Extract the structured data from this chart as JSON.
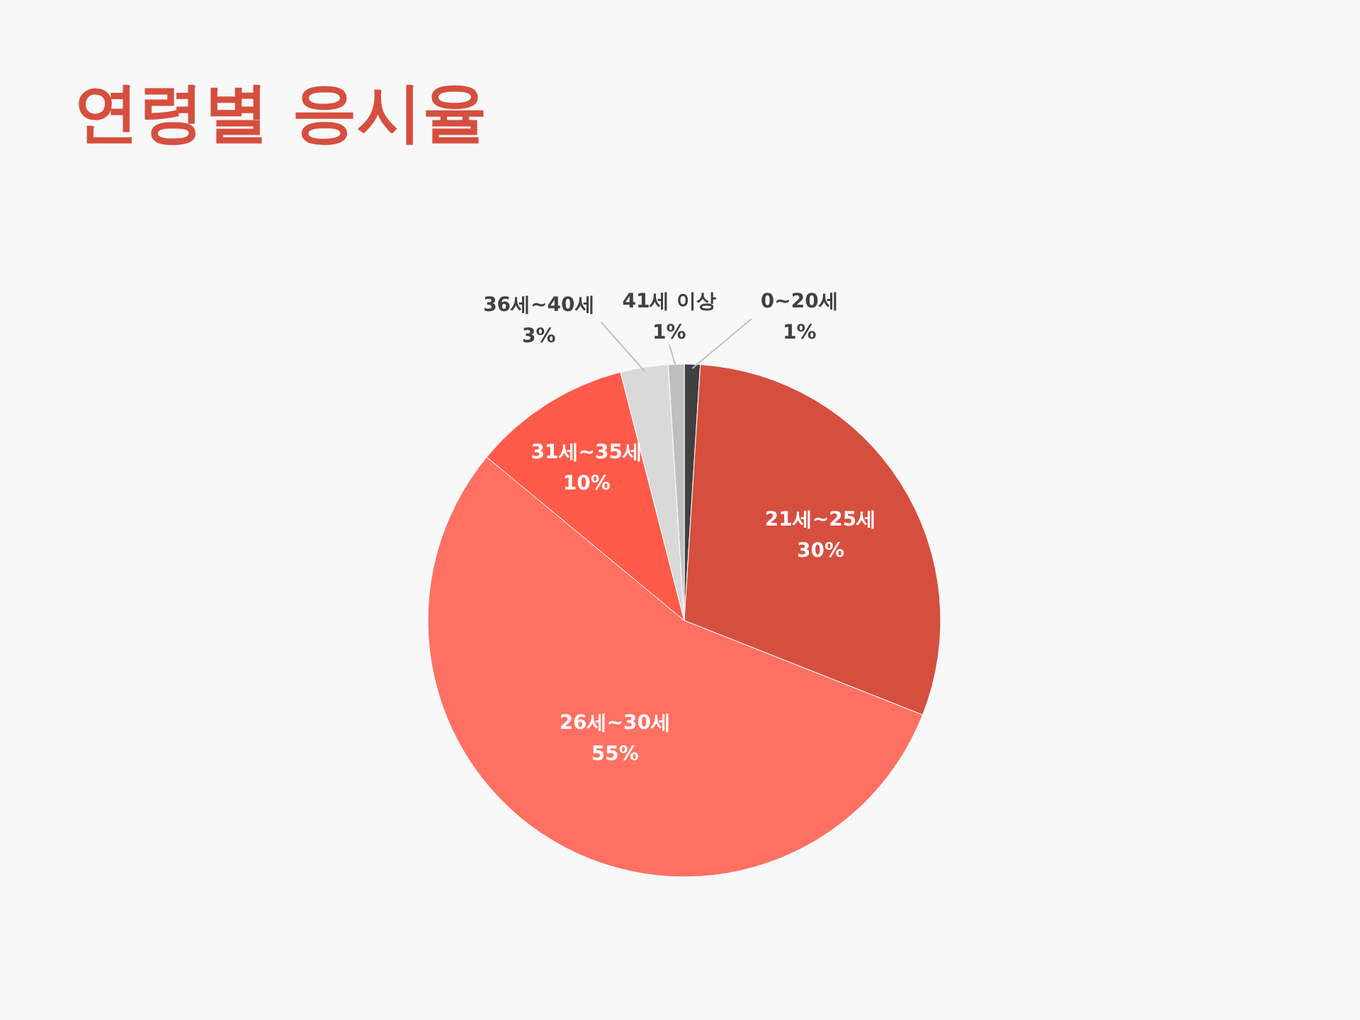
{
  "chart_data": {
    "type": "pie",
    "title": "연령별 응시율",
    "categories": [
      "0~20세",
      "21세~25세",
      "26세~30세",
      "31세~35세",
      "36세~40세",
      "41세 이상"
    ],
    "values": [
      1,
      30,
      55,
      10,
      3,
      1
    ],
    "value_labels": [
      "1%",
      "30%",
      "55%",
      "10%",
      "3%",
      "1%"
    ],
    "colors": [
      "#404040",
      "#d64e3e",
      "#ff7063",
      "#ff5a4a",
      "#d9d9d9",
      "#bfbfbf"
    ],
    "legend": false
  }
}
